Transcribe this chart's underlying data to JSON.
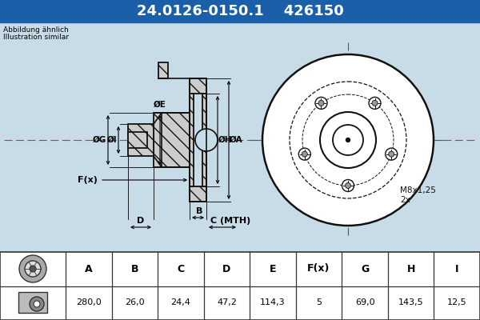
{
  "title_part_number": "24.0126-0150.1",
  "title_ref_number": "426150",
  "bg_color": "#c8dce8",
  "header_bg": "#1a5fa8",
  "header_text_color": "#ffffff",
  "table_headers": [
    "A",
    "B",
    "C",
    "D",
    "E",
    "F(x)",
    "G",
    "H",
    "I"
  ],
  "table_values": [
    "280,0",
    "26,0",
    "24,4",
    "47,2",
    "114,3",
    "5",
    "69,0",
    "143,5",
    "12,5"
  ],
  "note_line1": "Abbildung ähnlich",
  "note_line2": "Illustration similar",
  "thread_label1": "M8x1,25",
  "thread_label2": "2x",
  "center_line_color": "#555555",
  "hatch_color": "#cccccc",
  "drawing_bg": "#c8dce8",
  "table_bg": "#ffffff"
}
